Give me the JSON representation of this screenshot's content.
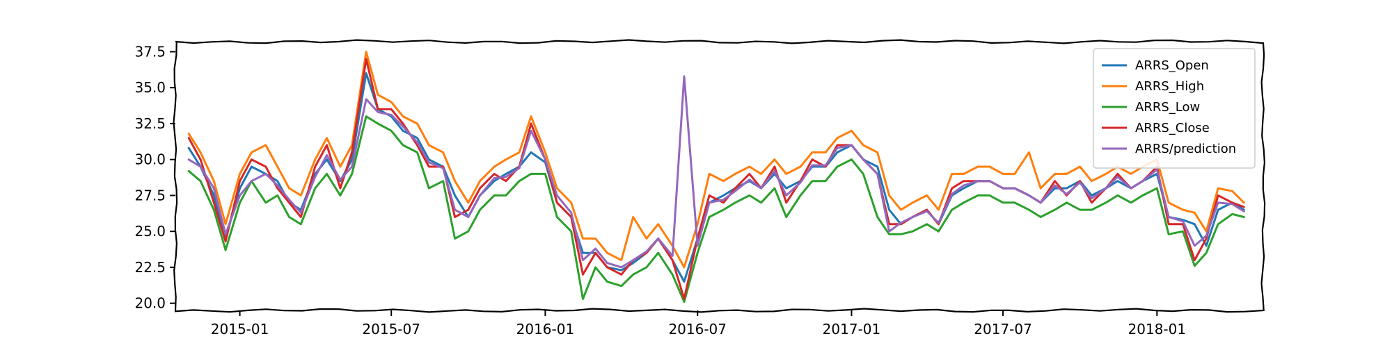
{
  "chart_data": {
    "type": "line",
    "title": "",
    "xlabel": "",
    "ylabel": "",
    "xlim": [
      "2014-10-16",
      "2018-05-08"
    ],
    "ylim": [
      19.5,
      38.2
    ],
    "grid": false,
    "legend_position": "top-right",
    "x_ticks": [
      "2015-01",
      "2015-07",
      "2016-01",
      "2016-07",
      "2017-01",
      "2017-07",
      "2018-01"
    ],
    "y_ticks": [
      "20.0",
      "22.5",
      "25.0",
      "27.5",
      "30.0",
      "32.5",
      "35.0",
      "37.5"
    ],
    "x": [
      "2014-11-01",
      "2014-11-15",
      "2014-12-01",
      "2014-12-15",
      "2015-01-01",
      "2015-01-15",
      "2015-02-01",
      "2015-02-15",
      "2015-03-01",
      "2015-03-15",
      "2015-04-01",
      "2015-04-15",
      "2015-05-01",
      "2015-05-15",
      "2015-06-01",
      "2015-06-15",
      "2015-07-01",
      "2015-07-15",
      "2015-08-01",
      "2015-08-15",
      "2015-09-01",
      "2015-09-15",
      "2015-10-01",
      "2015-10-15",
      "2015-11-01",
      "2015-11-15",
      "2015-12-01",
      "2015-12-15",
      "2016-01-01",
      "2016-01-15",
      "2016-02-01",
      "2016-02-15",
      "2016-03-01",
      "2016-03-15",
      "2016-04-01",
      "2016-04-15",
      "2016-05-01",
      "2016-05-15",
      "2016-06-01",
      "2016-06-15",
      "2016-07-01",
      "2016-07-15",
      "2016-08-01",
      "2016-08-15",
      "2016-09-01",
      "2016-09-15",
      "2016-10-01",
      "2016-10-15",
      "2016-11-01",
      "2016-11-15",
      "2016-12-01",
      "2016-12-15",
      "2017-01-01",
      "2017-01-15",
      "2017-02-01",
      "2017-02-15",
      "2017-03-01",
      "2017-03-15",
      "2017-04-01",
      "2017-04-15",
      "2017-05-01",
      "2017-05-15",
      "2017-06-01",
      "2017-06-15",
      "2017-07-01",
      "2017-07-15",
      "2017-08-01",
      "2017-08-15",
      "2017-09-01",
      "2017-09-15",
      "2017-10-01",
      "2017-10-15",
      "2017-11-01",
      "2017-11-15",
      "2017-12-01",
      "2017-12-15",
      "2018-01-01",
      "2018-01-15",
      "2018-02-01",
      "2018-02-15",
      "2018-03-01",
      "2018-03-15",
      "2018-04-01",
      "2018-04-15"
    ],
    "series": [
      {
        "name": "ARRS_Open",
        "color": "#1f77b4",
        "values": [
          30.8,
          29.5,
          27.5,
          24.5,
          28.0,
          29.5,
          29.0,
          28.5,
          27.0,
          26.5,
          29.0,
          30.0,
          28.5,
          30.0,
          36.0,
          33.5,
          33.0,
          32.0,
          31.5,
          30.0,
          29.5,
          27.5,
          26.0,
          27.5,
          28.5,
          29.0,
          29.5,
          30.5,
          29.8,
          27.0,
          26.0,
          23.5,
          23.5,
          22.5,
          22.3,
          22.8,
          23.5,
          24.5,
          23.0,
          21.5,
          24.5,
          27.0,
          27.5,
          28.0,
          28.5,
          28.0,
          29.0,
          28.0,
          28.5,
          29.5,
          29.5,
          30.5,
          31.0,
          30.0,
          29.5,
          26.5,
          25.5,
          26.0,
          26.5,
          25.5,
          27.5,
          28.0,
          28.5,
          28.5,
          28.0,
          28.0,
          27.5,
          27.0,
          28.0,
          28.0,
          28.5,
          27.5,
          28.0,
          28.5,
          28.0,
          28.5,
          29.0,
          26.0,
          25.8,
          25.5,
          24.0,
          26.5,
          27.0,
          26.5
        ]
      },
      {
        "name": "ARRS_High",
        "color": "#ff7f0e",
        "values": [
          31.8,
          30.5,
          28.5,
          25.5,
          29.0,
          30.5,
          31.0,
          29.5,
          28.0,
          27.5,
          30.0,
          31.5,
          29.5,
          31.0,
          37.5,
          34.5,
          34.0,
          33.0,
          32.5,
          31.0,
          30.5,
          28.5,
          27.0,
          28.5,
          29.5,
          30.0,
          30.5,
          33.0,
          30.5,
          28.0,
          27.0,
          24.5,
          24.5,
          23.5,
          23.0,
          26.0,
          24.5,
          25.5,
          24.0,
          22.5,
          25.5,
          29.0,
          28.5,
          29.0,
          29.5,
          29.0,
          30.0,
          29.0,
          29.5,
          30.5,
          30.5,
          31.5,
          32.0,
          31.0,
          30.5,
          27.5,
          26.5,
          27.0,
          27.5,
          26.5,
          29.0,
          29.0,
          29.5,
          29.5,
          29.0,
          29.0,
          30.5,
          28.0,
          29.0,
          29.0,
          29.5,
          28.5,
          29.0,
          29.5,
          29.0,
          29.5,
          30.0,
          27.0,
          26.5,
          26.3,
          25.0,
          28.0,
          27.8,
          27.0
        ]
      },
      {
        "name": "ARRS_Low",
        "color": "#2ca02c",
        "values": [
          29.2,
          28.5,
          26.5,
          23.7,
          27.0,
          28.5,
          27.0,
          27.5,
          26.0,
          25.5,
          28.0,
          29.0,
          27.5,
          29.0,
          33.0,
          32.5,
          32.0,
          31.0,
          30.5,
          28.0,
          28.5,
          24.5,
          25.0,
          26.5,
          27.5,
          27.5,
          28.5,
          29.0,
          29.0,
          26.0,
          25.0,
          20.3,
          22.5,
          21.5,
          21.2,
          22.0,
          22.5,
          23.5,
          22.0,
          20.1,
          23.5,
          26.0,
          26.5,
          27.0,
          27.5,
          27.0,
          28.0,
          26.0,
          27.5,
          28.5,
          28.5,
          29.5,
          30.0,
          29.0,
          26.0,
          24.8,
          24.8,
          25.0,
          25.5,
          25.0,
          26.5,
          27.0,
          27.5,
          27.5,
          27.0,
          27.0,
          26.5,
          26.0,
          26.5,
          27.0,
          26.5,
          26.5,
          27.0,
          27.5,
          27.0,
          27.5,
          28.0,
          24.8,
          25.0,
          22.6,
          23.5,
          25.5,
          26.2,
          26.0
        ]
      },
      {
        "name": "ARRS_Close",
        "color": "#d62728",
        "values": [
          31.5,
          30.0,
          27.0,
          24.3,
          28.5,
          30.0,
          29.5,
          28.0,
          27.0,
          26.0,
          29.5,
          31.0,
          28.0,
          30.5,
          37.0,
          33.5,
          33.5,
          32.5,
          31.0,
          29.5,
          29.5,
          26.0,
          26.5,
          28.0,
          29.0,
          28.5,
          29.5,
          32.5,
          30.0,
          27.0,
          26.0,
          22.0,
          23.5,
          22.5,
          22.0,
          23.0,
          23.5,
          24.5,
          23.0,
          20.3,
          24.5,
          27.5,
          27.0,
          28.0,
          29.0,
          28.0,
          29.5,
          27.0,
          28.5,
          30.0,
          29.5,
          31.0,
          31.0,
          30.0,
          29.0,
          25.5,
          25.5,
          26.0,
          26.5,
          25.5,
          28.0,
          28.5,
          28.5,
          28.5,
          28.0,
          28.0,
          27.5,
          27.0,
          28.5,
          27.5,
          28.5,
          27.0,
          28.0,
          29.0,
          28.0,
          28.5,
          29.5,
          25.5,
          25.5,
          23.0,
          24.5,
          27.5,
          27.0,
          26.7
        ]
      },
      {
        "name": "ARRS/prediction",
        "color": "#9467bd",
        "values": [
          30.0,
          29.5,
          28.0,
          24.8,
          27.5,
          28.5,
          29.0,
          28.2,
          27.2,
          26.3,
          28.8,
          30.3,
          28.6,
          29.5,
          34.2,
          33.3,
          33.1,
          32.3,
          31.2,
          29.8,
          29.4,
          26.5,
          26.0,
          27.5,
          28.7,
          28.8,
          29.4,
          32.0,
          30.0,
          27.5,
          26.3,
          23.0,
          23.8,
          22.8,
          22.5,
          23.0,
          23.6,
          24.5,
          23.3,
          35.8,
          24.0,
          27.0,
          27.2,
          27.8,
          28.6,
          28.0,
          29.2,
          27.5,
          28.4,
          29.6,
          29.6,
          30.8,
          31.0,
          30.0,
          29.0,
          25.0,
          25.6,
          26.0,
          26.4,
          25.6,
          27.6,
          28.2,
          28.5,
          28.5,
          28.0,
          28.0,
          27.5,
          27.0,
          28.2,
          27.6,
          28.4,
          27.3,
          28.0,
          28.8,
          28.0,
          28.5,
          29.3,
          26.0,
          25.7,
          24.0,
          24.7,
          27.0,
          26.9,
          26.4
        ]
      }
    ]
  }
}
